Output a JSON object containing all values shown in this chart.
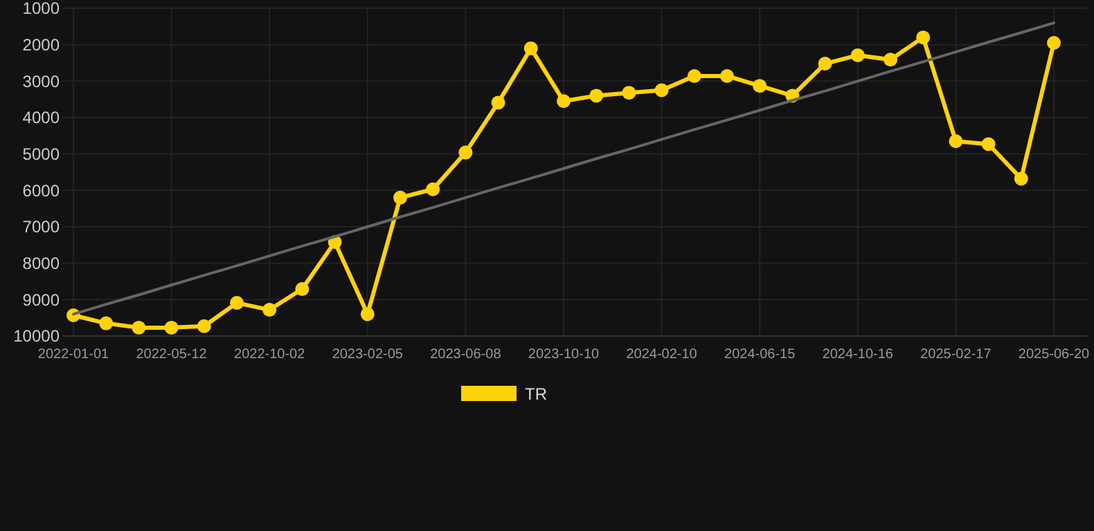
{
  "chart_data": {
    "type": "line",
    "categories": [
      "2022-01-01",
      null,
      null,
      "2022-05-12",
      null,
      null,
      "2022-10-02",
      null,
      null,
      "2023-02-05",
      null,
      null,
      "2023-06-08",
      null,
      null,
      "2023-10-10",
      null,
      null,
      "2024-02-10",
      null,
      null,
      "2024-06-15",
      null,
      null,
      "2024-10-16",
      null,
      null,
      "2025-02-17",
      null,
      null,
      "2025-06-20"
    ],
    "series": [
      {
        "name": "TR",
        "color": "#ffd20a",
        "marker": "circle",
        "values": [
          9430,
          9650,
          9770,
          9770,
          9730,
          9090,
          9280,
          8710,
          7420,
          9400,
          6200,
          5970,
          4960,
          3590,
          2100,
          3550,
          3400,
          3320,
          3250,
          2860,
          2860,
          3130,
          3400,
          2520,
          2290,
          2410,
          1800,
          4650,
          4730,
          5680,
          1950
        ]
      },
      {
        "type": "line",
        "color": "#666666",
        "marker": "none",
        "values": [
          9400,
          9130,
          8870,
          8600,
          8330,
          8070,
          7800,
          7530,
          7270,
          7000,
          6730,
          6470,
          6200,
          5930,
          5670,
          5400,
          5130,
          4870,
          4600,
          4330,
          4070,
          3800,
          3530,
          3270,
          3000,
          2730,
          2470,
          2200,
          1930,
          1670,
          1400
        ]
      }
    ],
    "ylim": [
      10000,
      1000
    ],
    "yticks": [
      1000,
      2000,
      3000,
      4000,
      5000,
      6000,
      7000,
      8000,
      9000,
      10000
    ],
    "grid": true,
    "legend": "bottom"
  }
}
